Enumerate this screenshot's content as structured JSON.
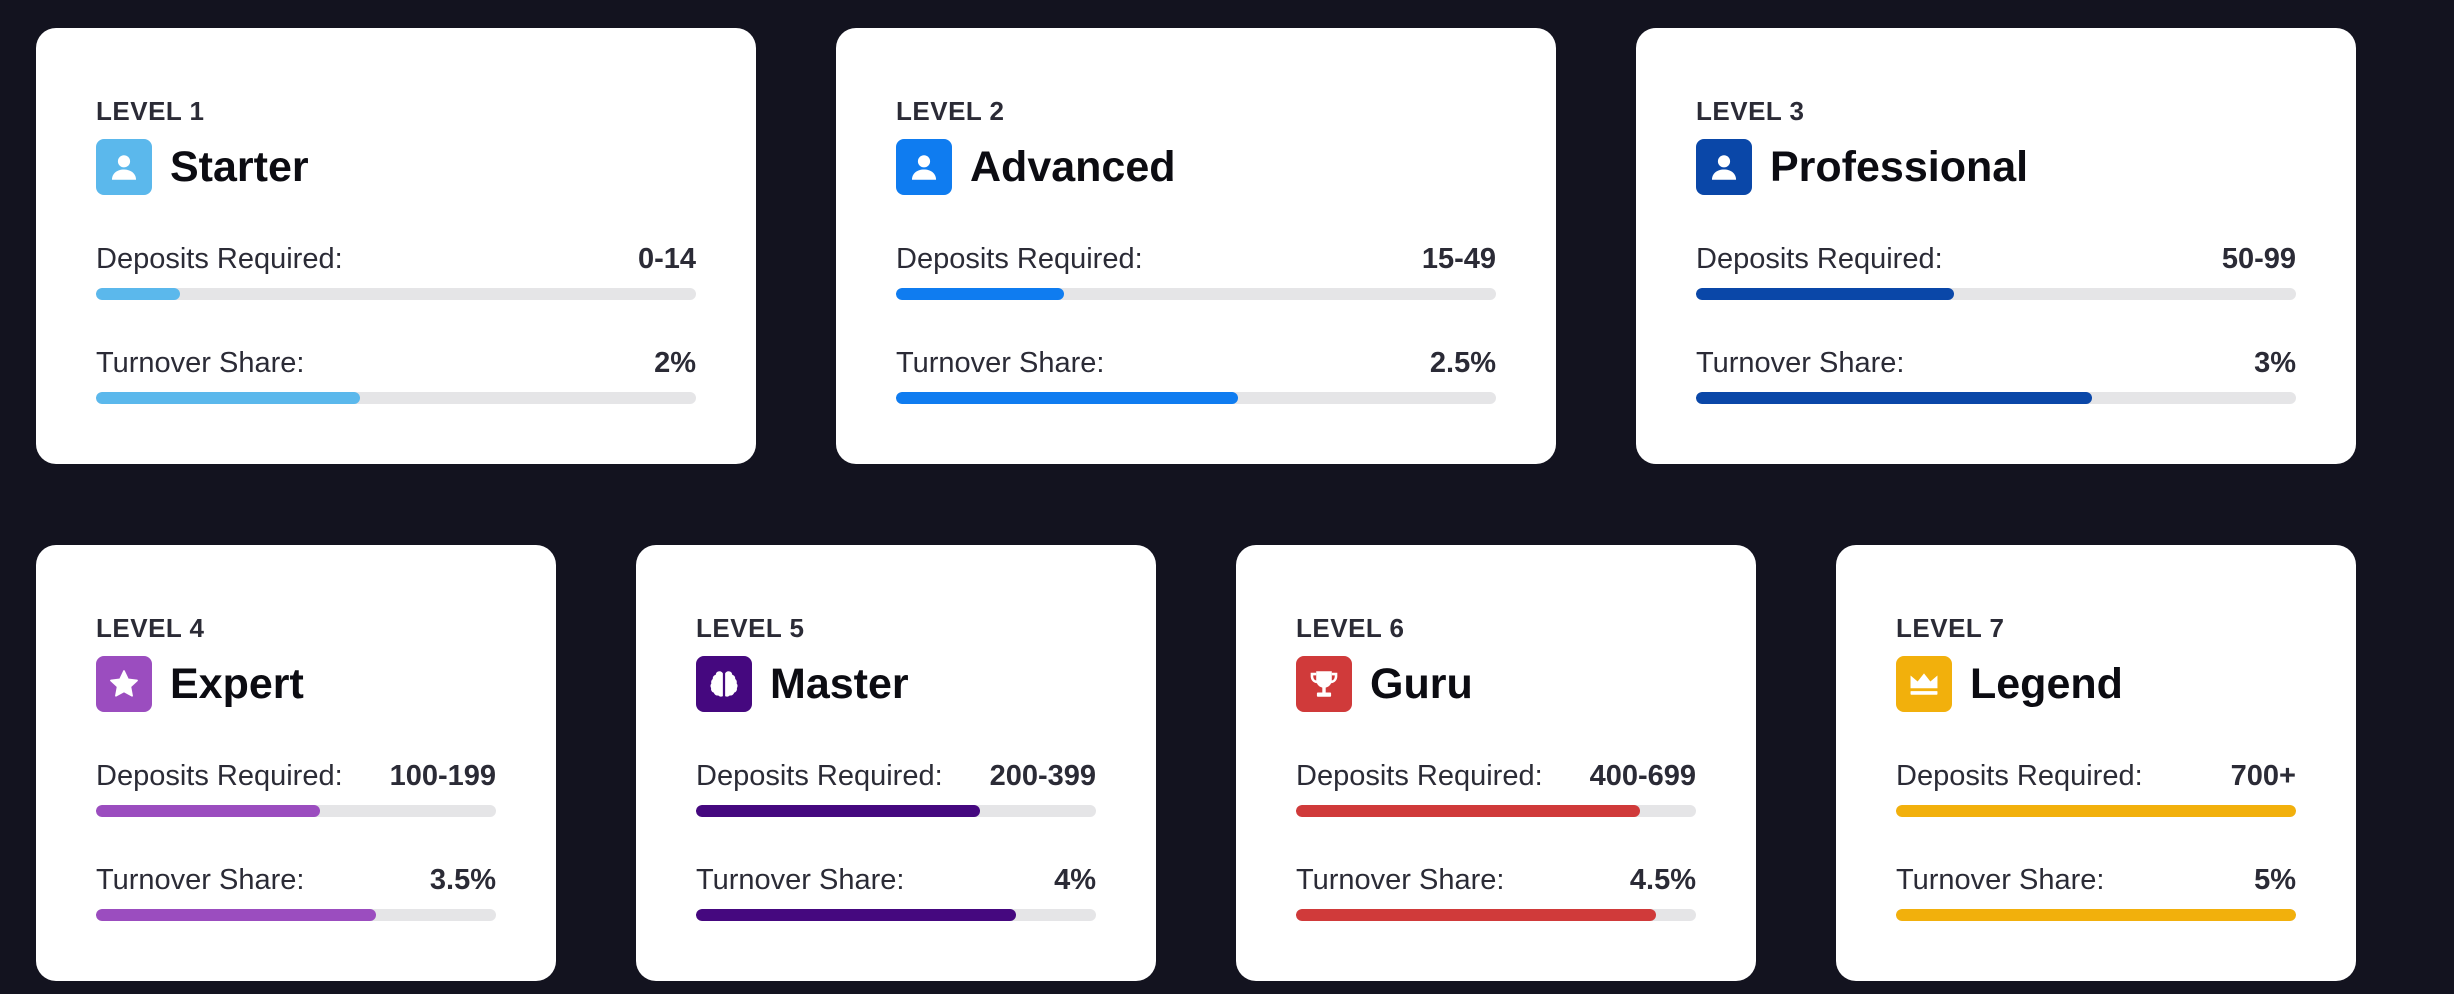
{
  "colors": {
    "page_background": "#13131f",
    "card_background": "#ffffff",
    "track": "#e5e5e7",
    "text": "#2b2b36"
  },
  "labels": {
    "deposits": "Deposits Required:",
    "turnover": "Turnover Share:"
  },
  "levels": [
    {
      "level_label": "LEVEL 1",
      "name": "Starter",
      "icon": "user-icon",
      "color": "#5bb8ec",
      "deposits_required": "0-14",
      "deposits_progress": 14,
      "turnover_share": "2%",
      "turnover_progress": 44
    },
    {
      "level_label": "LEVEL 2",
      "name": "Advanced",
      "icon": "user-icon",
      "color": "#0f7cf0",
      "deposits_required": "15-49",
      "deposits_progress": 28,
      "turnover_share": "2.5%",
      "turnover_progress": 57
    },
    {
      "level_label": "LEVEL 3",
      "name": "Professional",
      "icon": "user-icon",
      "color": "#0a47a8",
      "deposits_required": "50-99",
      "deposits_progress": 43,
      "turnover_share": "3%",
      "turnover_progress": 66
    },
    {
      "level_label": "LEVEL 4",
      "name": "Expert",
      "icon": "star-icon",
      "color": "#9b4dbf",
      "deposits_required": "100-199",
      "deposits_progress": 56,
      "turnover_share": "3.5%",
      "turnover_progress": 70
    },
    {
      "level_label": "LEVEL 5",
      "name": "Master",
      "icon": "brain-icon",
      "color": "#45087f",
      "deposits_required": "200-399",
      "deposits_progress": 71,
      "turnover_share": "4%",
      "turnover_progress": 80
    },
    {
      "level_label": "LEVEL 6",
      "name": "Guru",
      "icon": "trophy-icon",
      "color": "#d03a3a",
      "deposits_required": "400-699",
      "deposits_progress": 86,
      "turnover_share": "4.5%",
      "turnover_progress": 90
    },
    {
      "level_label": "LEVEL 7",
      "name": "Legend",
      "icon": "crown-icon",
      "color": "#f2b00c",
      "deposits_required": "700+",
      "deposits_progress": 100,
      "turnover_share": "5%",
      "turnover_progress": 100
    }
  ]
}
